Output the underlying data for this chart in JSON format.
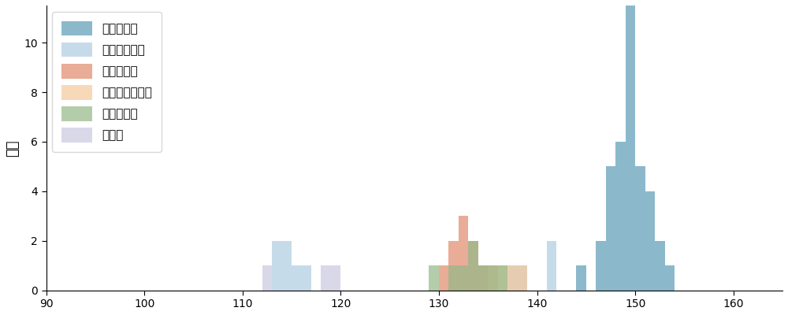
{
  "ylabel": "球数",
  "xlim": [
    90,
    165
  ],
  "ylim": [
    0,
    11.5
  ],
  "bin_width": 1,
  "figsize": [
    10.0,
    4.0
  ],
  "dpi": 100,
  "pitch_types": [
    {
      "label": "ストレート",
      "color": "#5b9ab5",
      "alpha": 0.7,
      "speeds": [
        144,
        146,
        146,
        147,
        147,
        147,
        147,
        147,
        148,
        148,
        148,
        148,
        148,
        148,
        149,
        149,
        149,
        149,
        149,
        149,
        149,
        149,
        149,
        149,
        149,
        149,
        150,
        150,
        150,
        150,
        150,
        151,
        151,
        151,
        151,
        152,
        152,
        153
      ]
    },
    {
      "label": "カットボール",
      "color": "#aecde1",
      "alpha": 0.7,
      "speeds": [
        113,
        113,
        114,
        114,
        115,
        116,
        137,
        138,
        141,
        141
      ]
    },
    {
      "label": "スプリット",
      "color": "#e0896a",
      "alpha": 0.7,
      "speeds": [
        130,
        131,
        131,
        132,
        132,
        132,
        133,
        133,
        134,
        135
      ]
    },
    {
      "label": "チェンジアップ",
      "color": "#f5c89a",
      "alpha": 0.7,
      "speeds": [
        135,
        136,
        137,
        138
      ]
    },
    {
      "label": "スライダー",
      "color": "#93b887",
      "alpha": 0.7,
      "speeds": [
        129,
        131,
        132,
        133,
        133,
        134,
        135,
        136
      ]
    },
    {
      "label": "カーブ",
      "color": "#c9c8e0",
      "alpha": 0.7,
      "speeds": [
        112,
        118,
        119
      ]
    }
  ],
  "yticks": [
    0,
    2,
    4,
    6,
    8,
    10
  ],
  "xticks": [
    90,
    100,
    110,
    120,
    130,
    140,
    150,
    160
  ]
}
